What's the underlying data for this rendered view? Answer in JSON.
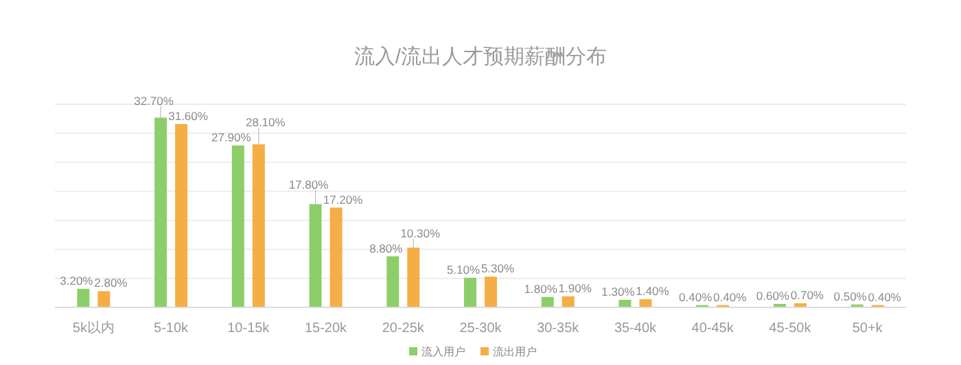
{
  "chart_data": {
    "type": "bar",
    "title": "流入/流出人才预期薪酬分布",
    "categories": [
      "5k以内",
      "5-10k",
      "10-15k",
      "15-20k",
      "20-25k",
      "25-30k",
      "30-35k",
      "35-40k",
      "40-45k",
      "45-50k",
      "50+k"
    ],
    "series": [
      {
        "name": "流入用户",
        "color": "#8ccf6a",
        "values": [
          3.2,
          32.7,
          27.9,
          17.8,
          8.8,
          5.1,
          1.8,
          1.3,
          0.4,
          0.6,
          0.5
        ],
        "value_labels": [
          "3.20%",
          "32.70%",
          "27.90%",
          "17.80%",
          "8.80%",
          "5.10%",
          "1.80%",
          "1.30%",
          "0.40%",
          "0.60%",
          "0.50%"
        ]
      },
      {
        "name": "流出用户",
        "color": "#f5ae45",
        "values": [
          2.8,
          31.6,
          28.1,
          17.2,
          10.3,
          5.3,
          1.9,
          1.4,
          0.4,
          0.7,
          0.4
        ],
        "value_labels": [
          "2.80%",
          "31.60%",
          "28.10%",
          "17.20%",
          "10.30%",
          "5.30%",
          "1.90%",
          "1.40%",
          "0.40%",
          "0.70%",
          "0.40%"
        ]
      }
    ],
    "ylim": [
      0,
      35
    ],
    "yticks": [
      {
        "value": 0,
        "label": null
      },
      {
        "value": 5,
        "label": null
      },
      {
        "value": 10,
        "label": null
      },
      {
        "value": 15,
        "label": null
      },
      {
        "value": 20,
        "label": null
      },
      {
        "value": 25,
        "label": null
      },
      {
        "value": 30,
        "label": null
      },
      {
        "value": 35,
        "label": null
      }
    ],
    "grid": "y",
    "legend": "bottom"
  }
}
